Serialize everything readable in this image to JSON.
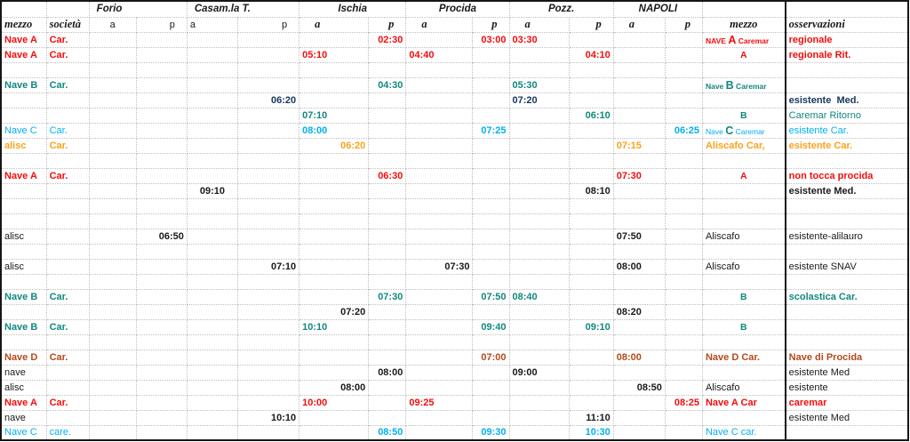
{
  "palette": {
    "red": "#f20d0d",
    "teal": "#12877f",
    "navy": "#17375d",
    "cyan": "#00b0f0",
    "orange": "#faa21b",
    "darkred": "#b3491b",
    "black": "#1a1a1a",
    "grid": "#bfbfbf",
    "border": "#161616"
  },
  "header": {
    "cities": [
      {
        "label": "Forio",
        "al": "L",
        "pad": 8
      },
      {
        "label": "Casam.la T.",
        "al": "L",
        "pad": 8
      },
      {
        "label": "Ischia",
        "al": "C"
      },
      {
        "label": "Procida",
        "al": "C"
      },
      {
        "label": "Pozz.",
        "al": "C"
      },
      {
        "label": "NAPOLI",
        "al": "C"
      }
    ],
    "subheads": [
      {
        "t": "mezzo",
        "cls": "sf",
        "al": "L"
      },
      {
        "t": "società",
        "cls": "sf",
        "al": "L"
      },
      {
        "t": "a",
        "cls": "sa",
        "al": "C"
      },
      {
        "t": "p",
        "cls": "sa",
        "al": "Ra"
      },
      {
        "t": "a",
        "cls": "sa",
        "al": "L"
      },
      {
        "t": "p",
        "cls": "sa",
        "al": "Ra"
      },
      {
        "t": "a",
        "cls": "sf",
        "al": "La"
      },
      {
        "t": "p",
        "cls": "sf",
        "al": "Ra"
      },
      {
        "t": "a",
        "cls": "sf",
        "al": "La"
      },
      {
        "t": "p",
        "cls": "sf",
        "al": "Ra"
      },
      {
        "t": "a",
        "cls": "sf",
        "al": "La"
      },
      {
        "t": "p",
        "cls": "sf",
        "al": "Ra"
      },
      {
        "t": "a",
        "cls": "sf",
        "al": "La"
      },
      {
        "t": "p",
        "cls": "sf",
        "al": "Ra"
      },
      {
        "t": "mezzo",
        "cls": "sf",
        "al": "C"
      },
      {
        "t": "osservazioni",
        "cls": "sf",
        "al": "L"
      }
    ]
  },
  "rows": [
    {
      "c": "red",
      "n": "Nave A",
      "nb": 1,
      "s": "Car.",
      "sb": 1,
      "t": [
        [
          "ip",
          "02:30",
          "R"
        ],
        [
          "pp",
          "03:00",
          "R"
        ],
        [
          "za",
          "03:30",
          "L"
        ]
      ],
      "m": {
        "parts": [
          {
            "t": "NAVE ",
            "sm": 1
          },
          {
            "t": "A"
          },
          {
            "t": " Caremar",
            "sm": 1
          }
        ],
        "al": "L",
        "b": 1
      },
      "o": "regionale",
      "ob": 1
    },
    {
      "c": "red",
      "n": "Nave A",
      "nb": 1,
      "s": "Car.",
      "sb": 1,
      "t": [
        [
          "ia",
          "05:10",
          "L"
        ],
        [
          "pa",
          "04:40",
          "L"
        ],
        [
          "zp",
          "04:10",
          "R"
        ]
      ],
      "m": {
        "t": "A",
        "al": "C",
        "big": 1
      },
      "o": "regionale Rit.",
      "ob": 1
    },
    {},
    {
      "c": "teal",
      "n": "Nave B",
      "nb": 1,
      "s": "Car.",
      "sb": 1,
      "t": [
        [
          "ip",
          "04:30",
          "R"
        ],
        [
          "za",
          "05:30",
          "L"
        ]
      ],
      "m": {
        "parts": [
          {
            "t": "Nave ",
            "sm": 1
          },
          {
            "t": "B"
          },
          {
            "t": " Caremar",
            "sm": 1
          }
        ],
        "al": "L",
        "b": 1
      }
    },
    {
      "c": "navy",
      "t": [
        [
          "cp",
          "06:20",
          "R"
        ],
        [
          "za",
          "07:20",
          "L"
        ]
      ],
      "o": "esistente  Med.",
      "ob": 1
    },
    {
      "c": "teal",
      "t": [
        [
          "ia",
          "07:10",
          "L"
        ],
        [
          "zp",
          "06:10",
          "R"
        ]
      ],
      "m": {
        "t": "B",
        "al": "C",
        "big": 1
      },
      "o": "Caremar Ritorno"
    },
    {
      "c": "cyan",
      "n": "Nave C",
      "s": "Car.",
      "t": [
        [
          "ia",
          "08:00",
          "L"
        ],
        [
          "pp",
          "07:25",
          "R"
        ],
        [
          "np",
          "06:25",
          "R"
        ]
      ],
      "m": {
        "parts": [
          {
            "t": "Nave ",
            "sm": 1
          },
          {
            "t": "C",
            "col": "teal"
          },
          {
            "t": " Caremar",
            "sm": 1
          }
        ],
        "al": "L"
      },
      "o": "esistente Car."
    },
    {
      "c": "orange",
      "n": "alisc",
      "nb": 1,
      "s": "Car.",
      "sb": 1,
      "t": [
        [
          "ia",
          "06:20",
          "R"
        ],
        [
          "na",
          "07:15",
          "L"
        ]
      ],
      "m": {
        "t": "Aliscafo Car,",
        "al": "L",
        "b": 1
      },
      "o": "esistente Car.",
      "ob": 1
    },
    {},
    {
      "c": "red",
      "n": "Nave A",
      "nb": 1,
      "s": "Car.",
      "sb": 1,
      "t": [
        [
          "ip",
          "06:30",
          "R"
        ],
        [
          "na",
          "07:30",
          "L"
        ]
      ],
      "m": {
        "t": "A",
        "al": "C",
        "big": 1
      },
      "o": "non tocca procida",
      "ob": 1
    },
    {
      "t": [
        [
          "ca",
          "09:10",
          "C"
        ],
        [
          "zp",
          "08:10",
          "R"
        ]
      ],
      "o": "esistente Med.",
      "ob": 1
    },
    {},
    {},
    {
      "n": "alisc",
      "t": [
        [
          "fp",
          "06:50",
          "R"
        ],
        [
          "na",
          "07:50",
          "L"
        ]
      ],
      "m": {
        "t": "Aliscafo",
        "al": "L"
      },
      "o": "esistente-alilauro"
    },
    {},
    {
      "n": "alisc",
      "t": [
        [
          "cp",
          "07:10",
          "R"
        ],
        [
          "pa",
          "07:30",
          "R"
        ],
        [
          "na",
          "08:00",
          "L"
        ]
      ],
      "m": {
        "t": "Aliscafo",
        "al": "L"
      },
      "o": "esistente SNAV"
    },
    {},
    {
      "c": "teal",
      "n": "Nave B",
      "nb": 1,
      "s": "Car.",
      "sb": 1,
      "t": [
        [
          "ip",
          "07:30",
          "R"
        ],
        [
          "pp",
          "07:50",
          "R"
        ],
        [
          "za",
          "08:40",
          "L"
        ]
      ],
      "m": {
        "t": "B",
        "al": "C",
        "big": 1
      },
      "o": "scolastica Car.",
      "ob": 1
    },
    {
      "t": [
        [
          "ia",
          "07:20",
          "R"
        ],
        [
          "na",
          "08:20",
          "L"
        ]
      ]
    },
    {
      "c": "teal",
      "n": "Nave B",
      "nb": 1,
      "s": "Car.",
      "sb": 1,
      "t": [
        [
          "ia",
          "10:10",
          "L"
        ],
        [
          "pp",
          "09:40",
          "R"
        ],
        [
          "zp",
          "09:10",
          "R"
        ]
      ],
      "m": {
        "t": "B",
        "al": "C",
        "big": 1
      }
    },
    {},
    {
      "c": "darkred",
      "n": "Nave D",
      "nb": 1,
      "s": "Car.",
      "sb": 1,
      "t": [
        [
          "pp",
          "07:00",
          "R"
        ],
        [
          "na",
          "08:00",
          "L"
        ]
      ],
      "m": {
        "t": "Nave D Car.",
        "al": "L",
        "b": 1
      },
      "o": "Nave di Procida",
      "ob": 1
    },
    {
      "n": "nave",
      "t": [
        [
          "ip",
          "08:00",
          "R"
        ],
        [
          "za",
          "09:00",
          "L"
        ]
      ],
      "o": "esistente Med"
    },
    {
      "n": "alisc",
      "t": [
        [
          "ia",
          "08:00",
          "R"
        ],
        [
          "na",
          "08:50",
          "R"
        ]
      ],
      "m": {
        "t": "Aliscafo",
        "al": "L"
      },
      "o": "esistente"
    },
    {
      "c": "red",
      "n": "Nave A",
      "nb": 1,
      "s": "Car.",
      "sb": 1,
      "t": [
        [
          "ia",
          "10:00",
          "L"
        ],
        [
          "pa",
          "09:25",
          "L"
        ],
        [
          "np",
          "08:25",
          "R"
        ]
      ],
      "m": {
        "t": "Nave A Car",
        "al": "L",
        "b": 1
      },
      "o": "caremar",
      "ob": 1
    },
    {
      "n": "nave",
      "t": [
        [
          "cp",
          "10:10",
          "R"
        ],
        [
          "zp",
          "11:10",
          "R"
        ]
      ],
      "o": "esistente Med"
    },
    {
      "c": "cyan",
      "n": "Nave C",
      "s": "care.",
      "t": [
        [
          "ip",
          "08:50",
          "R"
        ],
        [
          "pp",
          "09:30",
          "R"
        ],
        [
          "zp",
          "10:30",
          "R"
        ]
      ],
      "m": {
        "t": "Nave  C car.",
        "al": "L"
      }
    }
  ]
}
